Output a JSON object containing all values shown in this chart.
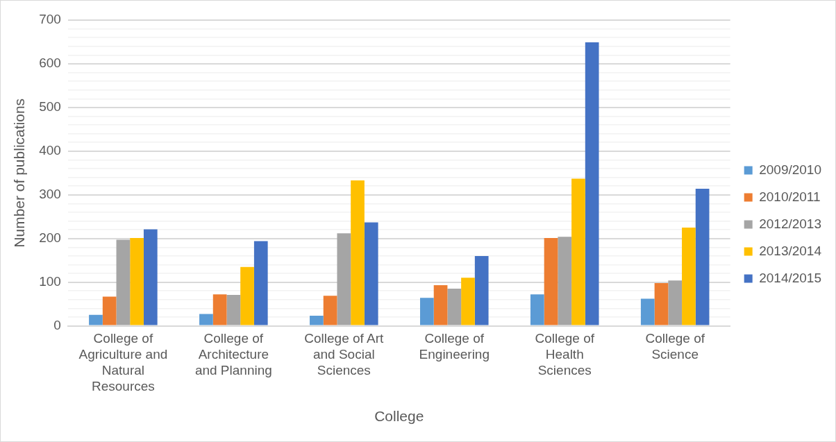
{
  "chart_data": {
    "type": "bar",
    "xlabel": "College",
    "ylabel": "Number of publications",
    "categories": [
      "College of Agriculture and Natural Resources",
      "College of Architecture and Planning",
      "College of Art and Social Sciences",
      "College of Engineering",
      "College of Health Sciences",
      "College of Science"
    ],
    "series": [
      {
        "name": "2009/2010",
        "color": "#5b9bd5",
        "values": [
          25,
          27,
          23,
          64,
          72,
          62
        ]
      },
      {
        "name": "2010/2011",
        "color": "#ed7d31",
        "values": [
          67,
          72,
          69,
          93,
          201,
          98
        ]
      },
      {
        "name": "2012/2013",
        "color": "#a5a5a5",
        "values": [
          197,
          71,
          212,
          85,
          204,
          104
        ]
      },
      {
        "name": "2013/2014",
        "color": "#ffc000",
        "values": [
          201,
          135,
          333,
          110,
          337,
          225
        ]
      },
      {
        "name": "2014/2015",
        "color": "#4472c4",
        "values": [
          221,
          194,
          237,
          160,
          649,
          314
        ]
      }
    ],
    "ylim": [
      0,
      700
    ],
    "yticks": [
      0,
      {
        "value": 20,
        "label": null
      },
      {
        "value": 40,
        "label": null
      },
      {
        "value": 60,
        "label": null
      },
      {
        "value": 80,
        "label": null
      },
      100,
      {
        "value": 120,
        "label": null
      },
      {
        "value": 140,
        "label": null
      },
      {
        "value": 160,
        "label": null
      },
      {
        "value": 180,
        "label": null
      },
      200,
      {
        "value": 220,
        "label": null
      },
      {
        "value": 240,
        "label": null
      },
      {
        "value": 260,
        "label": null
      },
      {
        "value": 280,
        "label": null
      },
      300,
      {
        "value": 320,
        "label": null
      },
      {
        "value": 340,
        "label": null
      },
      {
        "value": 360,
        "label": null
      },
      {
        "value": 380,
        "label": null
      },
      400,
      {
        "value": 420,
        "label": null
      },
      {
        "value": 440,
        "label": null
      },
      {
        "value": 460,
        "label": null
      },
      {
        "value": 480,
        "label": null
      },
      500,
      {
        "value": 520,
        "label": null
      },
      {
        "value": 540,
        "label": null
      },
      {
        "value": 560,
        "label": null
      },
      {
        "value": 580,
        "label": null
      },
      600,
      {
        "value": 620,
        "label": null
      },
      {
        "value": 640,
        "label": null
      },
      {
        "value": 660,
        "label": null
      },
      {
        "value": 680,
        "label": null
      },
      700
    ],
    "grid": "y",
    "legend": "right"
  }
}
